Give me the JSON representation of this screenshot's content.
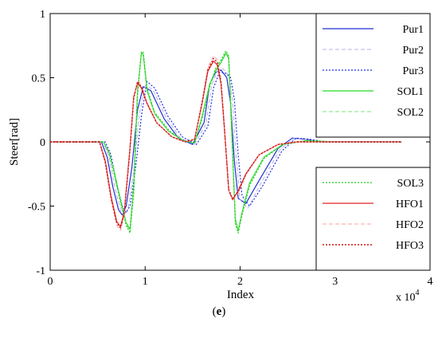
{
  "chart_data": {
    "type": "line",
    "title": "",
    "xlabel": "Index",
    "ylabel": "Steer[rad]",
    "x_multiplier_label": "x 10",
    "x_multiplier_exponent": "4",
    "xlim": [
      0,
      4
    ],
    "ylim": [
      -1,
      1
    ],
    "xticks": [
      "0",
      "1",
      "2",
      "3",
      "4"
    ],
    "yticks": [
      "1",
      "0.5",
      "0",
      "-0.5",
      "-1"
    ],
    "grid": false,
    "legend_placement": [
      "top-right",
      "bottom-right"
    ],
    "series": [
      {
        "name": "Pur1",
        "color": "#1f2fd0",
        "dash": "solid",
        "width": 1.2,
        "legend": 0,
        "x": [
          0,
          0.54,
          0.6,
          0.66,
          0.72,
          0.76,
          0.8,
          0.86,
          0.92,
          0.98,
          1.06,
          1.2,
          1.35,
          1.5,
          1.62,
          1.68,
          1.74,
          1.8,
          1.86,
          1.9,
          1.94,
          1.98,
          2.06,
          2.2,
          2.4,
          2.55,
          2.7,
          2.85,
          3.1,
          3.7
        ],
        "y": [
          0,
          0,
          -0.12,
          -0.35,
          -0.53,
          -0.57,
          -0.5,
          -0.2,
          0.25,
          0.43,
          0.4,
          0.18,
          0.03,
          -0.02,
          0.15,
          0.45,
          0.54,
          0.56,
          0.5,
          0.3,
          -0.15,
          -0.44,
          -0.48,
          -0.3,
          -0.05,
          0.03,
          0.02,
          0,
          0,
          0
        ]
      },
      {
        "name": "Pur2",
        "color": "#b8b0e6",
        "dash": "5,3",
        "width": 1.0,
        "legend": 0,
        "x": [
          0,
          0.56,
          0.62,
          0.68,
          0.74,
          0.78,
          0.82,
          0.88,
          0.94,
          1.0,
          1.08,
          1.22,
          1.37,
          1.52,
          1.64,
          1.7,
          1.76,
          1.82,
          1.88,
          1.92,
          1.96,
          2.0,
          2.08,
          2.22,
          2.42,
          2.57,
          2.72,
          2.87,
          3.12,
          3.7
        ],
        "y": [
          0,
          0,
          -0.12,
          -0.35,
          -0.53,
          -0.58,
          -0.52,
          -0.22,
          0.22,
          0.44,
          0.41,
          0.19,
          0.03,
          -0.02,
          0.14,
          0.44,
          0.55,
          0.57,
          0.52,
          0.32,
          -0.12,
          -0.45,
          -0.52,
          -0.32,
          -0.06,
          0.03,
          0.02,
          0,
          0,
          0
        ]
      },
      {
        "name": "Pur3",
        "color": "#2030e0",
        "dash": "2,2",
        "width": 1.2,
        "legend": 0,
        "x": [
          0,
          0.58,
          0.64,
          0.7,
          0.76,
          0.8,
          0.84,
          0.9,
          0.96,
          1.02,
          1.1,
          1.24,
          1.39,
          1.54,
          1.66,
          1.72,
          1.78,
          1.84,
          1.9,
          1.94,
          1.98,
          2.02,
          2.1,
          2.24,
          2.44,
          2.59,
          2.74,
          2.89,
          3.14,
          3.7
        ],
        "y": [
          0,
          0,
          -0.1,
          -0.33,
          -0.5,
          -0.55,
          -0.5,
          -0.2,
          0.2,
          0.47,
          0.42,
          0.2,
          0.04,
          -0.02,
          0.12,
          0.42,
          0.54,
          0.54,
          0.5,
          0.33,
          -0.1,
          -0.42,
          -0.5,
          -0.34,
          -0.07,
          0.03,
          0.02,
          0,
          0,
          0
        ]
      },
      {
        "name": "SOL1",
        "color": "#22dd22",
        "dash": "solid",
        "width": 1.2,
        "legend": 0,
        "x": [
          0,
          0.56,
          0.62,
          0.68,
          0.74,
          0.8,
          0.84,
          0.88,
          0.92,
          0.96,
          0.98,
          1.02,
          1.1,
          1.25,
          1.4,
          1.52,
          1.6,
          1.68,
          1.74,
          1.8,
          1.85,
          1.88,
          1.91,
          1.95,
          1.98,
          2.02,
          2.1,
          2.25,
          2.45,
          2.7,
          3.0,
          3.7
        ],
        "y": [
          0,
          0,
          -0.08,
          -0.25,
          -0.45,
          -0.63,
          -0.68,
          -0.35,
          0.4,
          0.69,
          0.68,
          0.4,
          0.22,
          0.08,
          0.01,
          -0.01,
          0.2,
          0.45,
          0.55,
          0.62,
          0.69,
          0.65,
          0.1,
          -0.6,
          -0.69,
          -0.55,
          -0.32,
          -0.12,
          -0.02,
          0.01,
          0,
          0
        ]
      },
      {
        "name": "SOL2",
        "color": "#7fe07f",
        "dash": "5,3",
        "width": 1.0,
        "legend": 0,
        "x": [
          0,
          0.56,
          0.62,
          0.68,
          0.74,
          0.8,
          0.84,
          0.88,
          0.92,
          0.96,
          0.98,
          1.02,
          1.1,
          1.25,
          1.4,
          1.52,
          1.6,
          1.68,
          1.74,
          1.8,
          1.85,
          1.88,
          1.91,
          1.95,
          1.98,
          2.02,
          2.1,
          2.25,
          2.45,
          2.7,
          3.0,
          3.7
        ],
        "y": [
          0,
          0,
          -0.08,
          -0.26,
          -0.46,
          -0.64,
          -0.7,
          -0.38,
          0.38,
          0.7,
          0.69,
          0.41,
          0.22,
          0.08,
          0.01,
          -0.01,
          0.19,
          0.44,
          0.56,
          0.63,
          0.7,
          0.66,
          0.12,
          -0.62,
          -0.7,
          -0.56,
          -0.33,
          -0.12,
          -0.02,
          0.01,
          0,
          0
        ]
      },
      {
        "name": "SOL3",
        "color": "#22cc22",
        "dash": "2,2",
        "width": 1.2,
        "legend": 1,
        "x": [
          0,
          0.56,
          0.62,
          0.68,
          0.74,
          0.8,
          0.84,
          0.88,
          0.92,
          0.96,
          0.98,
          1.02,
          1.1,
          1.25,
          1.4,
          1.52,
          1.6,
          1.68,
          1.74,
          1.8,
          1.85,
          1.88,
          1.91,
          1.95,
          1.98,
          2.02,
          2.1,
          2.25,
          2.45,
          2.7,
          3.0,
          3.7
        ],
        "y": [
          0,
          0,
          -0.09,
          -0.27,
          -0.47,
          -0.65,
          -0.71,
          -0.4,
          0.36,
          0.7,
          0.7,
          0.42,
          0.23,
          0.09,
          0.01,
          -0.01,
          0.18,
          0.43,
          0.57,
          0.64,
          0.71,
          0.67,
          0.14,
          -0.64,
          -0.71,
          -0.57,
          -0.34,
          -0.13,
          -0.02,
          0.01,
          0,
          0
        ]
      },
      {
        "name": "HFO1",
        "color": "#e02020",
        "dash": "solid",
        "width": 1.2,
        "legend": 1,
        "x": [
          0,
          0.52,
          0.58,
          0.64,
          0.7,
          0.74,
          0.78,
          0.84,
          0.88,
          0.92,
          0.96,
          1.02,
          1.12,
          1.28,
          1.42,
          1.52,
          1.6,
          1.66,
          1.72,
          1.76,
          1.8,
          1.84,
          1.88,
          1.92,
          1.98,
          2.06,
          2.2,
          2.4,
          2.6,
          2.85,
          3.7
        ],
        "y": [
          0,
          0,
          -0.15,
          -0.42,
          -0.62,
          -0.66,
          -0.55,
          -0.05,
          0.35,
          0.46,
          0.42,
          0.3,
          0.15,
          0.04,
          0.0,
          0.02,
          0.3,
          0.55,
          0.63,
          0.6,
          0.45,
          0.05,
          -0.38,
          -0.45,
          -0.38,
          -0.25,
          -0.1,
          -0.02,
          0,
          0,
          0
        ]
      },
      {
        "name": "HFO2",
        "color": "#f4a0a0",
        "dash": "5,3",
        "width": 1.0,
        "legend": 1,
        "x": [
          0,
          0.52,
          0.58,
          0.64,
          0.7,
          0.74,
          0.78,
          0.84,
          0.88,
          0.92,
          0.96,
          1.02,
          1.12,
          1.28,
          1.42,
          1.52,
          1.6,
          1.66,
          1.72,
          1.76,
          1.8,
          1.84,
          1.88,
          1.92,
          1.98,
          2.06,
          2.2,
          2.4,
          2.6,
          2.85,
          3.7
        ],
        "y": [
          0,
          0,
          -0.17,
          -0.45,
          -0.65,
          -0.69,
          -0.58,
          -0.08,
          0.33,
          0.48,
          0.44,
          0.31,
          0.15,
          0.04,
          0.0,
          0.02,
          0.32,
          0.58,
          0.67,
          0.64,
          0.48,
          0.07,
          -0.38,
          -0.46,
          -0.4,
          -0.26,
          -0.1,
          -0.02,
          0,
          0,
          0
        ]
      },
      {
        "name": "HFO3",
        "color": "#d01010",
        "dash": "2,2",
        "width": 1.4,
        "legend": 1,
        "x": [
          0,
          0.52,
          0.58,
          0.64,
          0.7,
          0.74,
          0.78,
          0.84,
          0.88,
          0.92,
          0.96,
          1.02,
          1.12,
          1.28,
          1.42,
          1.52,
          1.6,
          1.66,
          1.72,
          1.76,
          1.8,
          1.84,
          1.88,
          1.92,
          1.98,
          2.06,
          2.2,
          2.4,
          2.6,
          2.85,
          3.7
        ],
        "y": [
          0,
          0,
          -0.16,
          -0.43,
          -0.63,
          -0.67,
          -0.56,
          -0.06,
          0.34,
          0.47,
          0.43,
          0.3,
          0.15,
          0.04,
          0.0,
          0.02,
          0.31,
          0.56,
          0.65,
          0.62,
          0.46,
          0.06,
          -0.37,
          -0.44,
          -0.39,
          -0.25,
          -0.1,
          -0.02,
          0,
          0,
          0
        ]
      }
    ]
  },
  "caption": {
    "open": "(",
    "letter": "e",
    "close": ")"
  }
}
